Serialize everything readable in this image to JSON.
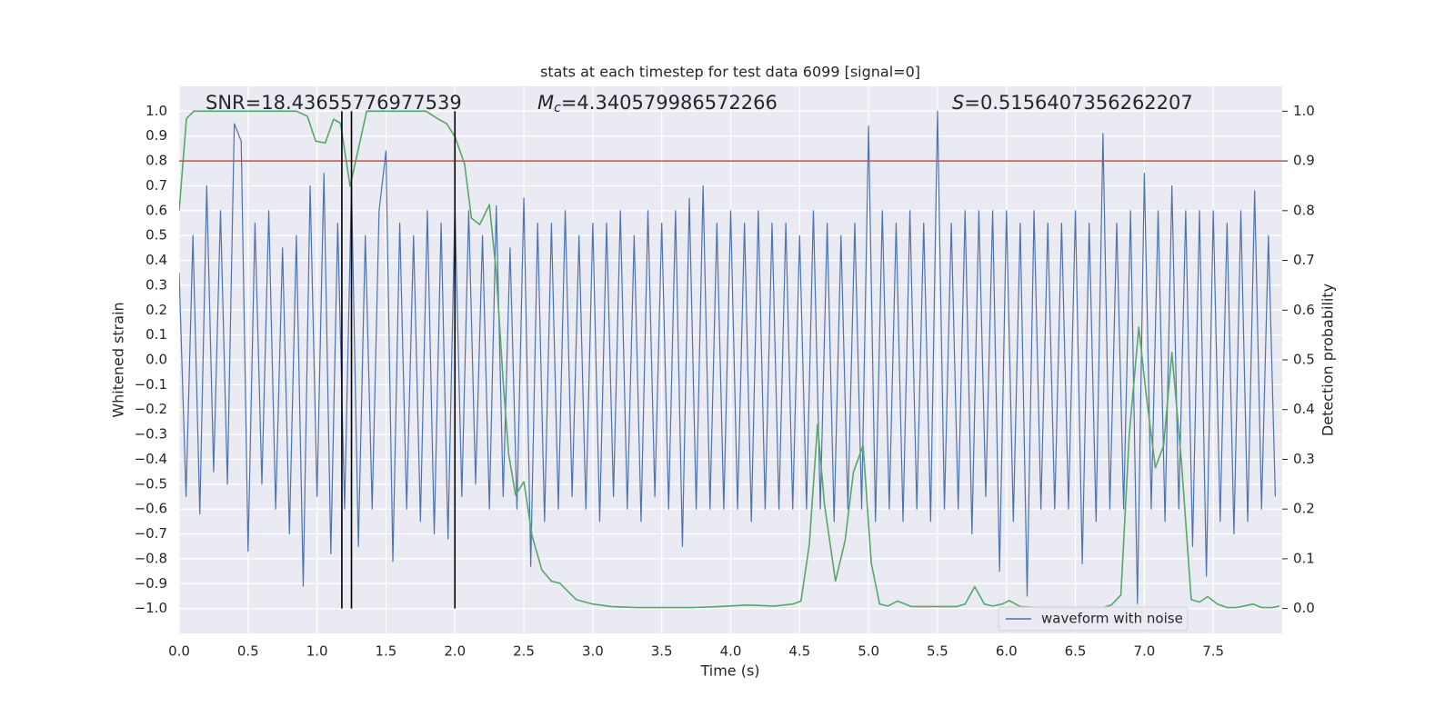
{
  "chart_data": {
    "type": "line",
    "title": "stats at each timestep for test data 6099 [signal=0]",
    "x_label": "Time (s)",
    "y_label": "Whitened strain",
    "y2_label": "Detection probability",
    "annotations": [
      {
        "parts": [
          "SNR=18.43655776977539"
        ]
      },
      {
        "parts": [
          "M",
          "c",
          "=4.340579986572266"
        ]
      },
      {
        "parts": [
          "S",
          "=0.5156407356262207"
        ]
      }
    ],
    "xlim": [
      0,
      8.0
    ],
    "ylim": [
      -1.1,
      1.1
    ],
    "y2lim": [
      -0.05,
      1.05
    ],
    "xticks": [
      {
        "value": 0,
        "label": "0.0"
      },
      0.5,
      {
        "value": 1,
        "label": "1.0"
      },
      1.5,
      {
        "value": 2,
        "label": "2.0"
      },
      2.5,
      {
        "value": 3,
        "label": "3.0"
      },
      3.5,
      {
        "value": 4,
        "label": "4.0"
      },
      4.5,
      {
        "value": 5,
        "label": "5.0"
      },
      5.5,
      {
        "value": 6,
        "label": "6.0"
      },
      6.5,
      {
        "value": 7,
        "label": "7.0"
      },
      7.5
    ],
    "yticks": [
      {
        "value": -1,
        "label": "−1.0"
      },
      {
        "value": -0.9,
        "label": "−0.9"
      },
      {
        "value": -0.8,
        "label": "−0.8"
      },
      {
        "value": -0.7,
        "label": "−0.7"
      },
      {
        "value": -0.6,
        "label": "−0.6"
      },
      {
        "value": -0.5,
        "label": "−0.5"
      },
      {
        "value": -0.4,
        "label": "−0.4"
      },
      {
        "value": -0.3,
        "label": "−0.3"
      },
      {
        "value": -0.2,
        "label": "−0.2"
      },
      {
        "value": -0.1,
        "label": "−0.1"
      },
      {
        "value": 0,
        "label": "0.0"
      },
      0.1,
      0.2,
      0.3,
      0.4,
      0.5,
      0.6,
      0.7,
      0.8,
      0.9,
      {
        "value": 1,
        "label": "1.0"
      }
    ],
    "y2ticks": [
      {
        "value": 0,
        "label": "0.0"
      },
      0.1,
      0.2,
      0.3,
      0.4,
      0.5,
      0.6,
      0.7,
      0.8,
      0.9,
      {
        "value": 1,
        "label": "1.0"
      }
    ],
    "grid": true,
    "legend": "lower right",
    "hline": {
      "value": 0.9,
      "axis": "y2",
      "color": "#c44e52"
    },
    "vlines": {
      "x": [
        1.18,
        1.25,
        2.0
      ],
      "ymin": -1.0,
      "ymax": 1.0,
      "color": "#000000"
    },
    "series": [
      {
        "name": "waveform with noise",
        "color": "#4c72b0",
        "x": [
          0,
          0.05,
          0.1,
          0.15,
          0.2,
          0.25,
          0.3,
          0.35,
          0.4,
          0.45,
          0.5,
          0.55,
          0.6,
          0.65,
          0.7,
          0.75,
          0.8,
          0.85,
          0.9,
          0.95,
          1.0,
          1.05,
          1.1,
          1.15,
          1.2,
          1.25,
          1.3,
          1.35,
          1.4,
          1.45,
          1.5,
          1.55,
          1.6,
          1.65,
          1.7,
          1.75,
          1.8,
          1.85,
          1.9,
          1.95,
          2.0,
          2.05,
          2.1,
          2.15,
          2.2,
          2.25,
          2.3,
          2.35,
          2.4,
          2.45,
          2.5,
          2.55,
          2.6,
          2.65,
          2.7,
          2.75,
          2.8,
          2.85,
          2.9,
          2.95,
          3.0,
          3.05,
          3.1,
          3.15,
          3.2,
          3.25,
          3.3,
          3.35,
          3.4,
          3.45,
          3.5,
          3.55,
          3.6,
          3.65,
          3.7,
          3.75,
          3.8,
          3.85,
          3.9,
          3.95,
          4.0,
          4.05,
          4.1,
          4.15,
          4.2,
          4.25,
          4.3,
          4.35,
          4.4,
          4.45,
          4.5,
          4.55,
          4.6,
          4.65,
          4.7,
          4.75,
          4.8,
          4.85,
          4.9,
          4.95,
          5.0,
          5.05,
          5.1,
          5.15,
          5.2,
          5.25,
          5.3,
          5.35,
          5.4,
          5.45,
          5.5,
          5.55,
          5.6,
          5.65,
          5.7,
          5.75,
          5.8,
          5.85,
          5.9,
          5.95,
          6.0,
          6.05,
          6.1,
          6.15,
          6.2,
          6.25,
          6.3,
          6.35,
          6.4,
          6.45,
          6.5,
          6.55,
          6.6,
          6.65,
          6.7,
          6.75,
          6.8,
          6.85,
          6.9,
          6.95,
          7.0,
          7.05,
          7.1,
          7.15,
          7.2,
          7.25,
          7.3,
          7.35,
          7.4,
          7.45,
          7.5,
          7.55,
          7.6,
          7.65,
          7.7,
          7.75,
          7.8,
          7.85,
          7.9,
          7.95
        ],
        "values": [
          0.35,
          -0.55,
          0.5,
          -0.62,
          0.7,
          -0.45,
          0.6,
          -0.5,
          0.95,
          0.88,
          -0.77,
          0.55,
          -0.5,
          0.6,
          -0.6,
          0.45,
          -0.7,
          0.5,
          -0.91,
          0.7,
          -0.55,
          0.75,
          -0.78,
          0.55,
          -0.6,
          0.7,
          -0.75,
          0.5,
          -0.6,
          0.6,
          0.84,
          -0.81,
          0.55,
          -0.6,
          0.5,
          -0.65,
          0.6,
          -0.7,
          0.55,
          -0.72,
          0.62,
          -0.55,
          0.6,
          -0.5,
          0.5,
          -0.6,
          0.62,
          -0.55,
          0.45,
          -0.6,
          0.65,
          -0.83,
          0.55,
          -0.65,
          0.55,
          -0.6,
          0.6,
          -0.55,
          0.5,
          -0.6,
          0.55,
          -0.65,
          0.55,
          -0.55,
          0.6,
          -0.6,
          0.5,
          -0.65,
          0.6,
          -0.55,
          0.55,
          -0.6,
          0.6,
          -0.75,
          0.65,
          -0.6,
          0.7,
          -0.6,
          0.55,
          -0.6,
          0.6,
          -0.6,
          0.55,
          -0.65,
          0.6,
          -0.6,
          0.55,
          -0.6,
          0.55,
          -0.6,
          0.5,
          -0.6,
          0.6,
          -0.6,
          0.55,
          -0.65,
          0.5,
          -0.6,
          0.55,
          -0.6,
          0.94,
          -0.65,
          0.6,
          -0.6,
          0.55,
          -0.65,
          0.6,
          -0.6,
          0.55,
          -0.65,
          1.0,
          -0.6,
          0.55,
          -0.6,
          0.6,
          -0.7,
          0.6,
          -0.55,
          0.6,
          -0.85,
          0.6,
          -0.65,
          0.55,
          -0.95,
          0.6,
          -0.6,
          0.55,
          -0.6,
          0.55,
          -0.6,
          0.6,
          -0.82,
          0.55,
          -0.65,
          0.91,
          -0.6,
          0.55,
          -0.6,
          0.6,
          -0.98,
          0.75,
          -0.6,
          0.6,
          -0.65,
          0.7,
          -0.6,
          0.6,
          -0.75,
          0.6,
          -0.87,
          0.6,
          -0.65,
          0.55,
          -0.7,
          0.6,
          -0.65,
          0.68,
          -0.6,
          0.5,
          -0.55
        ]
      },
      {
        "color": "#55a868",
        "axis": "y2",
        "x": [
          0,
          0.053,
          0.106,
          0.85,
          0.93,
          0.99,
          1.06,
          1.12,
          1.17,
          1.24,
          1.36,
          1.79,
          1.88,
          1.94,
          2.0,
          2.07,
          2.12,
          2.18,
          2.25,
          2.3,
          2.35,
          2.39,
          2.44,
          2.5,
          2.56,
          2.63,
          2.7,
          2.76,
          2.88,
          3.0,
          3.13,
          3.32,
          3.72,
          3.92,
          4.12,
          4.32,
          4.45,
          4.51,
          4.57,
          4.63,
          4.68,
          4.76,
          4.83,
          4.89,
          4.96,
          5.02,
          5.08,
          5.14,
          5.21,
          5.31,
          5.51,
          5.64,
          5.7,
          5.77,
          5.84,
          5.9,
          5.97,
          6.02,
          6.1,
          6.23,
          6.7,
          6.76,
          6.83,
          6.89,
          6.96,
          7.01,
          7.08,
          7.14,
          7.2,
          7.27,
          7.34,
          7.4,
          7.46,
          7.53,
          7.6,
          7.67,
          7.79,
          7.85,
          7.93,
          7.98
        ],
        "values": [
          0.8,
          0.985,
          1.0,
          1.0,
          0.99,
          0.94,
          0.936,
          0.984,
          0.976,
          0.849,
          1.0,
          1.0,
          0.984,
          0.975,
          0.949,
          0.894,
          0.785,
          0.772,
          0.812,
          0.675,
          0.456,
          0.31,
          0.228,
          0.255,
          0.146,
          0.078,
          0.055,
          0.051,
          0.018,
          0.009,
          0.004,
          0.002,
          0.002,
          0.004,
          0.007,
          0.005,
          0.009,
          0.015,
          0.128,
          0.37,
          0.21,
          0.055,
          0.137,
          0.274,
          0.328,
          0.091,
          0.009,
          0.005,
          0.015,
          0.004,
          0.004,
          0.004,
          0.009,
          0.044,
          0.009,
          0.005,
          0.009,
          0.016,
          0.004,
          0.002,
          0.002,
          0.007,
          0.027,
          0.347,
          0.566,
          0.438,
          0.283,
          0.328,
          0.515,
          0.292,
          0.018,
          0.013,
          0.024,
          0.009,
          0.002,
          0.002,
          0.009,
          0.002,
          0.002,
          0.005
        ]
      }
    ]
  }
}
